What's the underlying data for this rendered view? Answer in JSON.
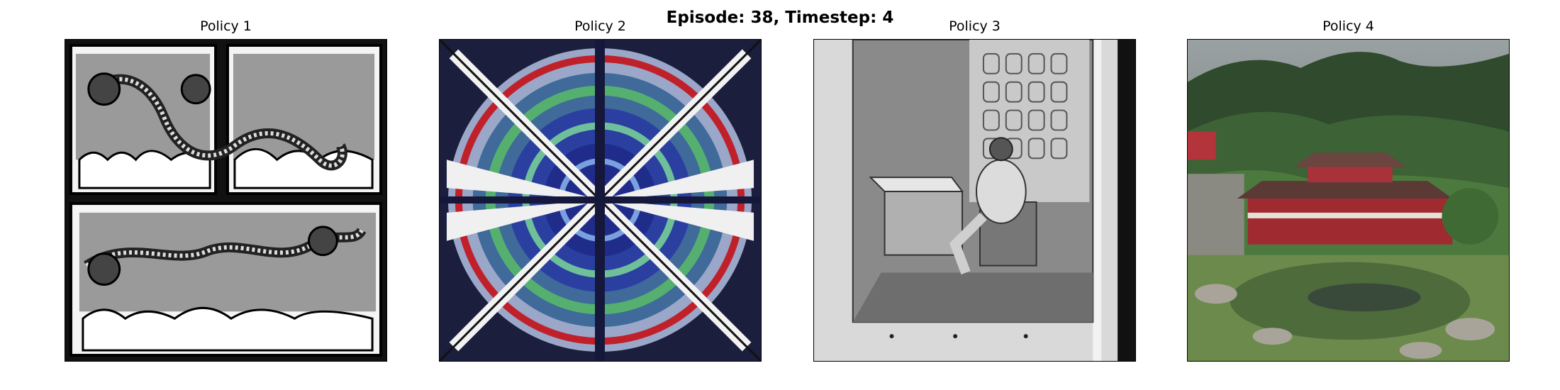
{
  "figure": {
    "title": "Episode: 38, Timestep: 4"
  },
  "panels": [
    {
      "title": "Policy 1",
      "image_subject": "dragon-comic-panels"
    },
    {
      "title": "Policy 2",
      "image_subject": "kaleidoscope-pattern"
    },
    {
      "title": "Policy 3",
      "image_subject": "engraving-man-reading"
    },
    {
      "title": "Policy 4",
      "image_subject": "mountain-temple-pond"
    }
  ]
}
